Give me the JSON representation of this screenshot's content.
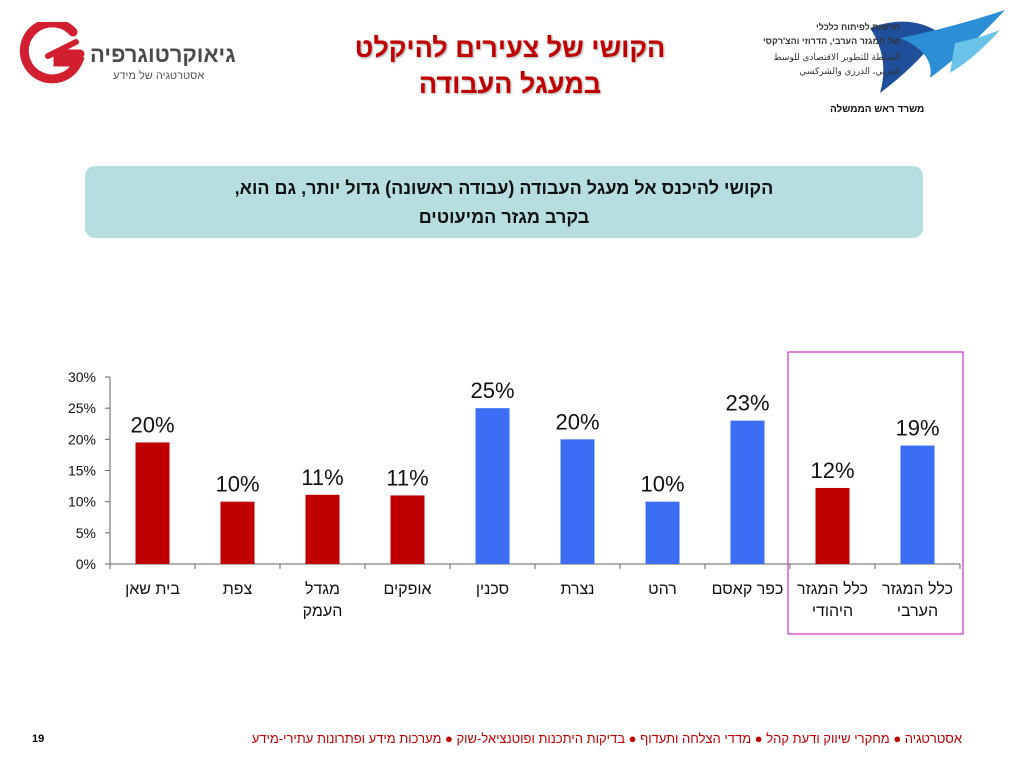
{
  "header": {
    "title_line1": "הקושי של צעירים להיקלט",
    "title_line2": "במעגל העבודה"
  },
  "logo_left": {
    "brand": "גיאוקרטוגרפיה",
    "tagline": "אסטרטגיה של מידע"
  },
  "logo_right": {
    "lines": [
      "הרשות לפיתוח כלכלי",
      "של המגזר הערבי, הדרוזי והצ'רקסי",
      "السلطة للتطوير الاقتصادي للوسط",
      "العربي، الدرزي والشركسي"
    ],
    "ministry": "משרד ראש הממשלה"
  },
  "callout": {
    "line1": "הקושי להיכנס אל מעגל העבודה (עבודה ראשונה) גדול יותר, גם הוא,",
    "line2": "בקרב מגזר המיעוטים"
  },
  "footer": {
    "page_number": "19",
    "text": "אסטרטגיה ● מחקרי שיווק ודעת קהל ● מדדי הצלחה ותעדוף ● בדיקות היתכנות ופוטנציאל-שוק ● מערכות מידע ופתרונות עתירי-מידע"
  },
  "colors": {
    "red": "#c00000",
    "blue": "#3c6ef5",
    "highlight": "#cc33cc"
  },
  "chart_data": {
    "type": "bar",
    "categories": [
      "בית שאן",
      "צפת",
      "מגדל העמק",
      "אופקים",
      "סכנין",
      "נצרת",
      "רהט",
      "כפר קאסם",
      "כלל המגזר היהודי",
      "כלל המגזר הערבי"
    ],
    "category_lines": [
      [
        "בית שאן"
      ],
      [
        "צפת"
      ],
      [
        "מגדל",
        "העמק"
      ],
      [
        "אופקים"
      ],
      [
        "סכנין"
      ],
      [
        "נצרת"
      ],
      [
        "רהט"
      ],
      [
        "כפר קאסם"
      ],
      [
        "כלל המגזר",
        "היהודי"
      ],
      [
        "כלל המגזר",
        "הערבי"
      ]
    ],
    "values": [
      19.5,
      10,
      11.1,
      11,
      25,
      20,
      10,
      23,
      12.2,
      19
    ],
    "data_labels": [
      "20%",
      "10%",
      "11%",
      "11%",
      "25%",
      "20%",
      "10%",
      "23%",
      "12%",
      "19%"
    ],
    "bar_colors": [
      "red",
      "red",
      "red",
      "red",
      "blue",
      "blue",
      "blue",
      "blue",
      "red",
      "blue"
    ],
    "yticks": [
      "0%",
      "5%",
      "10%",
      "15%",
      "20%",
      "25%",
      "30%"
    ],
    "ylim": [
      0,
      30
    ],
    "grid": false,
    "highlighted_categories": [
      8,
      9
    ]
  }
}
